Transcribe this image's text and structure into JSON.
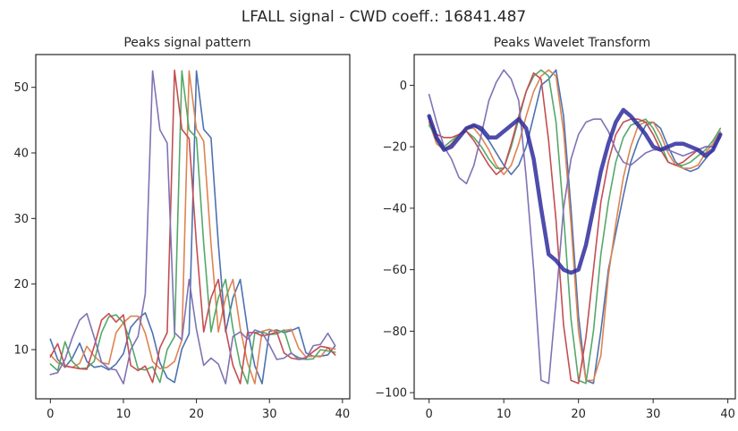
{
  "figure": {
    "suptitle": "LFALL signal   -   CWD coeff.: 16841.487"
  },
  "chart_data": [
    {
      "type": "line",
      "title": "Peaks signal pattern",
      "xlabel": "",
      "ylabel": "",
      "xlim": [
        -2,
        41
      ],
      "ylim": [
        2.5,
        55
      ],
      "xticks": [
        0,
        10,
        20,
        30,
        40
      ],
      "yticks": [
        10,
        20,
        30,
        40,
        50
      ],
      "grid": false,
      "x": [
        0,
        1,
        2,
        3,
        4,
        5,
        6,
        7,
        8,
        9,
        10,
        11,
        12,
        13,
        14,
        15,
        16,
        17,
        18,
        19,
        20,
        21,
        22,
        23,
        24,
        25,
        26,
        27,
        28,
        29,
        30,
        31,
        32,
        33,
        34,
        35,
        36,
        37,
        38,
        39
      ],
      "series": [
        {
          "color": "#4c72b0",
          "values": [
            11.6,
            8.5,
            7.3,
            8.7,
            11.0,
            8.2,
            7.3,
            7.5,
            6.9,
            7.8,
            9.4,
            13.4,
            14.7,
            15.6,
            12.5,
            8.0,
            5.7,
            5.0,
            10.1,
            12.4,
            52.5,
            43.6,
            42.3,
            26.1,
            12.7,
            17.9,
            20.7,
            13.1,
            7.5,
            4.8,
            12.8,
            13.0,
            12.6,
            12.9,
            13.4,
            9.5,
            9.0,
            9.0,
            9.2,
            10.6
          ]
        },
        {
          "color": "#dd8452",
          "values": [
            9.2,
            8.0,
            7.5,
            7.3,
            7.9,
            10.5,
            9.0,
            8.0,
            7.8,
            12.6,
            14.1,
            15.1,
            15.1,
            12.5,
            8.2,
            7.1,
            7.3,
            8.2,
            11.5,
            52.5,
            43.6,
            41.8,
            26.1,
            12.7,
            17.9,
            20.7,
            13.2,
            8.0,
            4.8,
            12.8,
            13.1,
            12.7,
            12.9,
            13.1,
            10.2,
            8.9,
            9.0,
            8.9,
            10.3,
            10.1
          ]
        },
        {
          "color": "#55a868",
          "values": [
            7.8,
            6.8,
            11.2,
            8.2,
            7.1,
            7.2,
            8.2,
            12.6,
            15.0,
            15.3,
            14.1,
            11.2,
            7.1,
            6.9,
            7.4,
            5.0,
            10.0,
            12.0,
            52.5,
            43.5,
            42.3,
            26.2,
            12.7,
            17.9,
            20.7,
            13.2,
            7.6,
            4.8,
            12.6,
            12.7,
            12.3,
            12.4,
            13.0,
            9.4,
            8.8,
            8.5,
            8.6,
            10.0,
            9.8,
            9.6
          ]
        },
        {
          "color": "#c44e52",
          "values": [
            8.9,
            10.9,
            7.5,
            7.3,
            7.1,
            7.0,
            10.5,
            14.5,
            15.5,
            14.2,
            15.3,
            7.6,
            6.8,
            7.5,
            5.0,
            10.3,
            12.6,
            52.6,
            43.6,
            42.2,
            26.1,
            12.7,
            17.9,
            20.7,
            13.1,
            7.6,
            4.8,
            12.6,
            12.6,
            12.1,
            12.3,
            12.7,
            9.5,
            8.7,
            8.5,
            8.8,
            9.7,
            10.5,
            10.3,
            9.2
          ]
        },
        {
          "color": "#8172b3",
          "values": [
            6.2,
            6.5,
            8.5,
            11.8,
            14.5,
            15.5,
            11.9,
            8.1,
            7.1,
            6.9,
            4.8,
            10.0,
            12.0,
            18.5,
            52.5,
            43.5,
            41.5,
            12.6,
            11.5,
            20.7,
            13.1,
            7.6,
            8.7,
            7.8,
            4.8,
            12.0,
            12.7,
            11.6,
            13.0,
            12.6,
            10.7,
            8.5,
            8.7,
            9.5,
            8.5,
            8.6,
            10.6,
            10.8,
            12.5,
            10.6
          ]
        }
      ]
    },
    {
      "type": "line",
      "title": "Peaks Wavelet Transform",
      "xlabel": "",
      "ylabel": "",
      "xlim": [
        -2,
        41
      ],
      "ylim": [
        -102,
        10
      ],
      "xticks": [
        0,
        10,
        20,
        30,
        40
      ],
      "yticks": [
        0,
        -20,
        -40,
        -60,
        -80,
        -100
      ],
      "grid": false,
      "x": [
        0,
        1,
        2,
        3,
        4,
        5,
        6,
        7,
        8,
        9,
        10,
        11,
        12,
        13,
        14,
        15,
        16,
        17,
        18,
        19,
        20,
        21,
        22,
        23,
        24,
        25,
        26,
        27,
        28,
        29,
        30,
        31,
        32,
        33,
        34,
        35,
        36,
        37,
        38,
        39
      ],
      "series": [
        {
          "color": "#4c72b0",
          "values": [
            -10,
            -18,
            -21,
            -19,
            -16,
            -14,
            -13,
            -15,
            -18,
            -22,
            -26,
            -29,
            -26,
            -20,
            -10,
            0,
            2,
            5,
            -10,
            -40,
            -75,
            -96,
            -97,
            -80,
            -60,
            -48,
            -36,
            -25,
            -18,
            -13,
            -12,
            -14,
            -20,
            -25,
            -27,
            -28,
            -27,
            -24,
            -21,
            -16
          ]
        },
        {
          "color": "#dd8452",
          "values": [
            -12,
            -19,
            -21,
            -19,
            -16,
            -14,
            -14,
            -17,
            -21,
            -26,
            -29,
            -26,
            -19,
            -10,
            -2,
            3,
            5,
            3,
            -15,
            -45,
            -80,
            -96,
            -96,
            -88,
            -62,
            -45,
            -30,
            -20,
            -13,
            -12,
            -12,
            -16,
            -22,
            -26,
            -27,
            -27,
            -26,
            -22,
            -19,
            -15
          ]
        },
        {
          "color": "#55a868",
          "values": [
            -13,
            -17,
            -20,
            -18,
            -16,
            -15,
            -17,
            -20,
            -24,
            -27,
            -27,
            -20,
            -11,
            -2,
            3,
            5,
            3,
            -12,
            -42,
            -76,
            -96,
            -97,
            -80,
            -55,
            -38,
            -25,
            -17,
            -13,
            -12,
            -11,
            -14,
            -19,
            -25,
            -26,
            -26,
            -25,
            -23,
            -21,
            -18,
            -14
          ]
        },
        {
          "color": "#c44e52",
          "values": [
            -11,
            -16,
            -17,
            -17,
            -16,
            -15,
            -18,
            -22,
            -26,
            -29,
            -27,
            -19,
            -10,
            -2,
            4,
            2,
            -18,
            -44,
            -78,
            -96,
            -97,
            -82,
            -60,
            -38,
            -25,
            -16,
            -12,
            -11,
            -11,
            -12,
            -16,
            -21,
            -25,
            -26,
            -25,
            -23,
            -21,
            -20,
            -20,
            -17
          ]
        },
        {
          "color": "#8172b3",
          "values": [
            -3,
            -12,
            -20,
            -24,
            -30,
            -32,
            -26,
            -16,
            -5,
            1,
            5,
            2,
            -5,
            -30,
            -60,
            -96,
            -97,
            -70,
            -40,
            -24,
            -16,
            -12,
            -11,
            -11,
            -15,
            -21,
            -25,
            -26,
            -24,
            -22,
            -21,
            -21,
            -21,
            -22,
            -23,
            -22,
            -21,
            -20,
            -20,
            -17
          ]
        },
        {
          "color": "#2f2d9e",
          "name_shown": false,
          "width": 4.5,
          "opacity": 0.85,
          "values": [
            -10,
            -17,
            -21,
            -20,
            -17,
            -14,
            -13,
            -14,
            -17,
            -17,
            -15,
            -13,
            -11,
            -14,
            -24,
            -40,
            -55,
            -57,
            -60,
            -61,
            -60,
            -52,
            -40,
            -28,
            -19,
            -12,
            -8,
            -10,
            -13,
            -16,
            -20,
            -21,
            -20,
            -19,
            -19,
            -20,
            -21,
            -23,
            -21,
            -16
          ]
        }
      ]
    }
  ]
}
